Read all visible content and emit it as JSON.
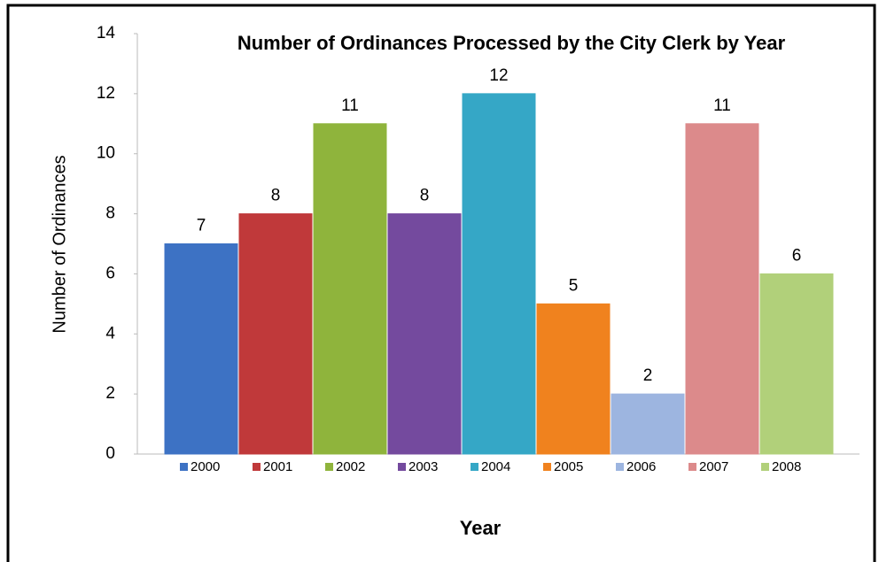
{
  "chart_data": {
    "type": "bar",
    "title": "Number of Ordinances Processed by the City Clerk by Year",
    "x_label": "Year",
    "y_label": "Number of Ordinances",
    "categories": [
      "2000",
      "2001",
      "2002",
      "2003",
      "2004",
      "2005",
      "2006",
      "2007",
      "2008"
    ],
    "values": [
      7,
      8,
      11,
      8,
      12,
      5,
      2,
      11,
      6
    ],
    "colors": [
      "#3d72c4",
      "#c0393a",
      "#8fb43c",
      "#744a9e",
      "#35a7c6",
      "#f0821e",
      "#9db5e0",
      "#dc8a8b",
      "#b1d07a"
    ],
    "ylim": [
      0,
      14
    ],
    "yticks": [
      0,
      2,
      4,
      6,
      8,
      10,
      12,
      14
    ],
    "legend": "bottom"
  }
}
